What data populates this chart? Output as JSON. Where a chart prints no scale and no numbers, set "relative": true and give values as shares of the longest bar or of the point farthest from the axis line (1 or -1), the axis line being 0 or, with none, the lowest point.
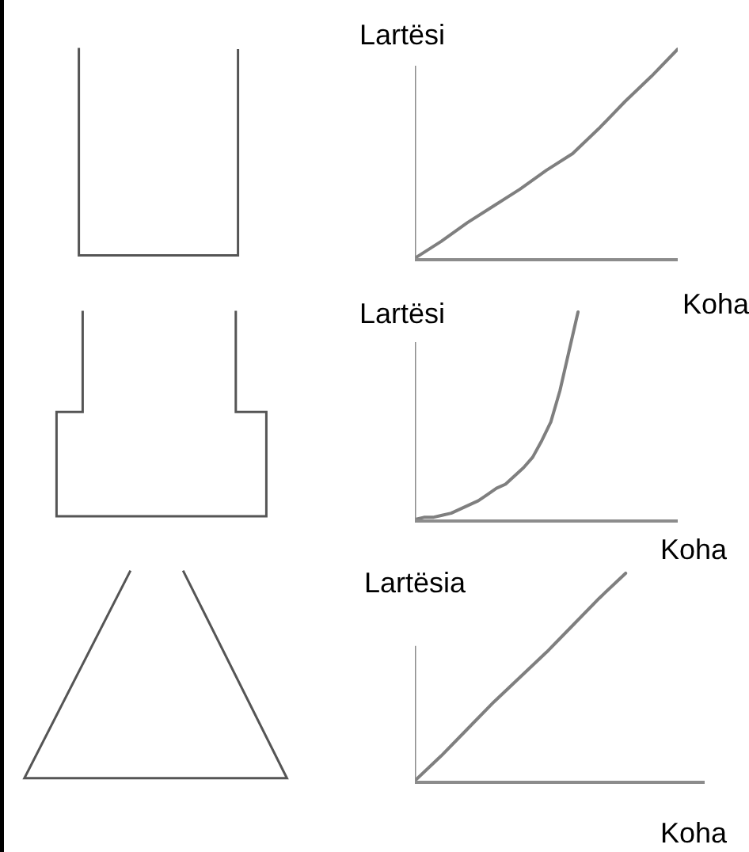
{
  "chart_data": [
    {
      "type": "line",
      "relative": true,
      "ylabel": "Lartësi",
      "xlabel": "Koha",
      "categories": [
        null,
        null,
        null,
        null,
        null,
        null,
        null,
        null,
        null,
        null,
        null
      ],
      "series": [
        {
          "color": "#7f7f7f",
          "values": [
            0,
            0.08,
            0.17,
            0.25,
            0.33,
            0.42,
            0.5,
            0.62,
            0.75,
            0.87,
            1
          ]
        }
      ]
    },
    {
      "type": "line",
      "relative": true,
      "ylabel": "Lartësi",
      "xlabel": "Koha",
      "categories": [
        null,
        null,
        null,
        null,
        null,
        null,
        null,
        null,
        null,
        null,
        null,
        null,
        null,
        null,
        null,
        null,
        null,
        null,
        null,
        null,
        null,
        null,
        null,
        null,
        null,
        null,
        null,
        null,
        null,
        null
      ],
      "series": [
        {
          "color": "#7f7f7f",
          "values": [
            0,
            0.01,
            0.01,
            0.02,
            0.03,
            0.05,
            0.07,
            0.09,
            0.12,
            0.15,
            0.17,
            0.21,
            0.25,
            0.3,
            0.38,
            0.47,
            0.62,
            0.81,
            1,
            null,
            null,
            null,
            null,
            null,
            null,
            null,
            null,
            null,
            null,
            null
          ]
        }
      ]
    },
    {
      "type": "line",
      "relative": true,
      "ylabel": "Lartësia",
      "xlabel": "Koha",
      "categories": [
        null,
        null,
        null,
        null,
        null,
        null,
        null,
        null,
        null,
        null,
        null,
        null
      ],
      "series": [
        {
          "color": "#7f7f7f",
          "values": [
            0,
            0.12,
            0.25,
            0.38,
            0.5,
            0.62,
            0.75,
            0.88,
            1,
            null,
            null,
            null
          ]
        }
      ]
    }
  ]
}
